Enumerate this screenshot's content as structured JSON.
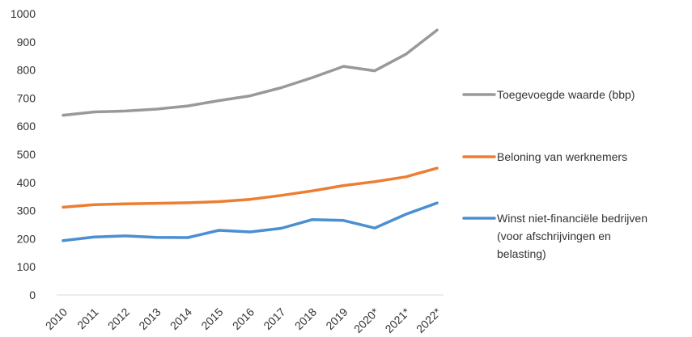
{
  "chart_data": {
    "type": "line",
    "title": "",
    "xlabel": "",
    "ylabel": "",
    "categories": [
      "2010",
      "2011",
      "2012",
      "2013",
      "2014",
      "2015",
      "2016",
      "2017",
      "2018",
      "2019",
      "2020*",
      "2021*",
      "2022*"
    ],
    "ylim": [
      0,
      1000
    ],
    "yticks": [
      "0",
      "100",
      "200",
      "300",
      "400",
      "500",
      "600",
      "700",
      "800",
      "900",
      "1000"
    ],
    "grid": false,
    "legend_position": "right",
    "series": [
      {
        "name": "Toegevoegde waarde (bbp)",
        "color": "#999999",
        "values": [
          639,
          651,
          654,
          661,
          672,
          691,
          708,
          737,
          773,
          813,
          797,
          856,
          942
        ]
      },
      {
        "name": "Beloning van werknemers",
        "color": "#ed7d31",
        "values": [
          312,
          321,
          324,
          326,
          328,
          332,
          340,
          354,
          370,
          389,
          403,
          420,
          451
        ]
      },
      {
        "name": "Winst niet-financiële bedrijven (voor afschrijvingen en belasting)",
        "name_lines": [
          "Winst niet-financiële bedrijven",
          "(voor afschrijvingen en",
          "belasting)"
        ],
        "color": "#4a8fd1",
        "values": [
          193,
          206,
          210,
          205,
          204,
          230,
          224,
          237,
          268,
          265,
          238,
          287,
          327
        ]
      }
    ]
  }
}
